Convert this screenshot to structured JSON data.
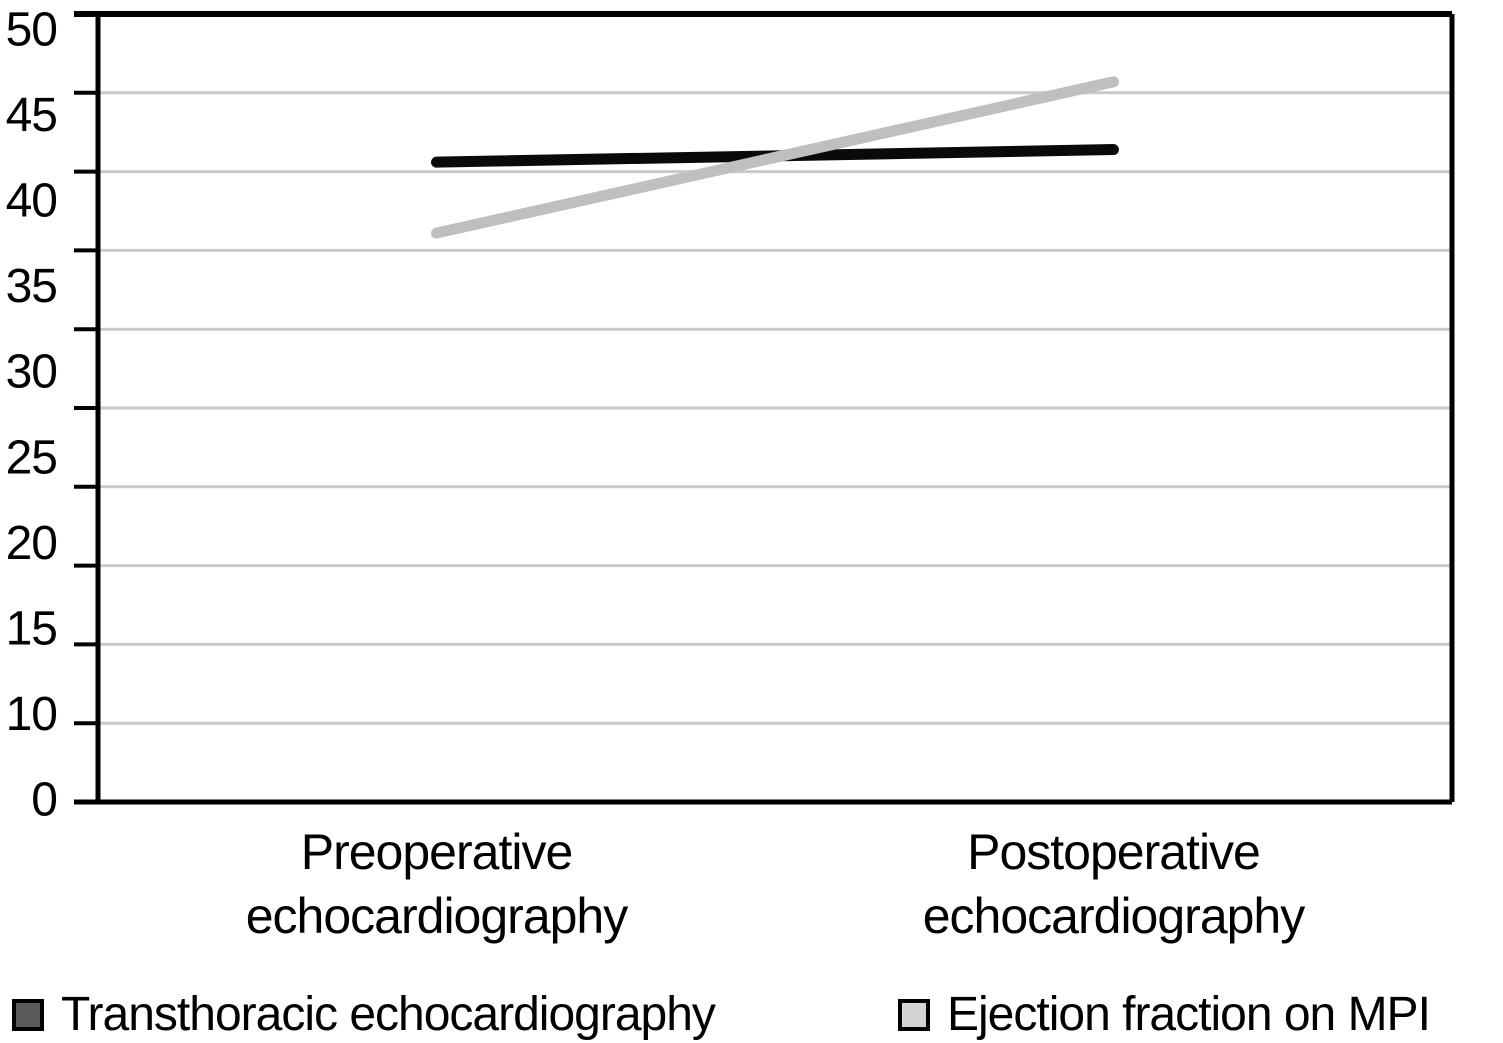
{
  "figure": {
    "background": "#ffffff",
    "text_color": "#000000"
  },
  "chart_data": {
    "type": "line",
    "title": "",
    "xlabel": "",
    "ylabel": "",
    "categories": [
      "Preoperative echocardiography",
      "Postoperative echocardiography"
    ],
    "series": [
      {
        "name": "Transthoracic echocardiography",
        "values": [
          40.6,
          41.4
        ],
        "color": "#0a0a0a",
        "legend_swatch": "#595959"
      },
      {
        "name": "Ejection fraction on MPI",
        "values": [
          36.1,
          45.7
        ],
        "color": "#bfbfbf",
        "legend_swatch": "#d4d4d4"
      }
    ],
    "ylim": [
      0,
      50
    ],
    "ytick_step": 5,
    "ytick_labels": [
      "50",
      "45",
      "40",
      "35",
      "30",
      "25",
      "20",
      "15",
      "10",
      "0"
    ],
    "gridlines_at": [
      45,
      40,
      35,
      30,
      25,
      20,
      15,
      10,
      5
    ],
    "grid": true,
    "legend_position": "bottom",
    "axis_color": "#000000",
    "gridline_color": "#c9c9c9",
    "plot_border": true
  }
}
